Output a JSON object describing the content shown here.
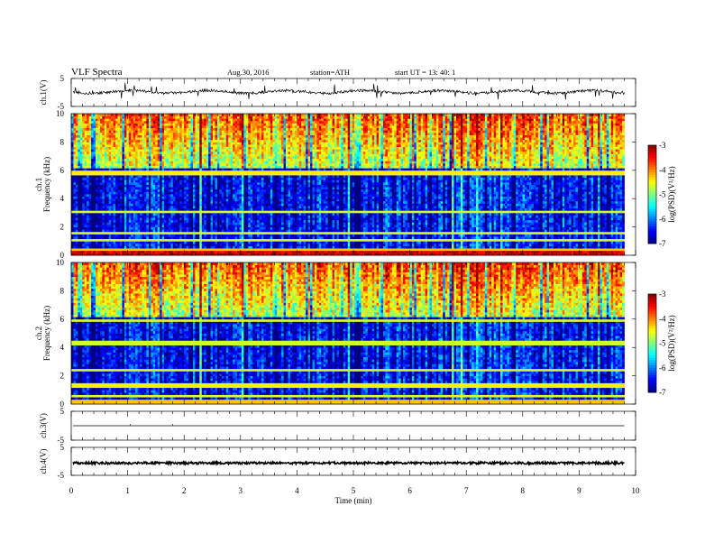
{
  "header": {
    "title": "VLF  Spectra",
    "date": "Aug.30, 2016",
    "station": "station=ATH",
    "start": "start  UT  =   13: 40: 1"
  },
  "chart_data": [
    {
      "type": "line",
      "name": "ch1-waveform",
      "ylabel": "ch.1(V)",
      "ylim": [
        -5,
        5
      ],
      "yticks": [
        "5",
        "-5"
      ],
      "xlim": [
        0,
        10
      ],
      "baseline": 0.2,
      "data_end_x": 9.8
    },
    {
      "type": "heatmap",
      "name": "ch1-spectrogram",
      "ylabel": "ch.1\nFrequency  (kHz)",
      "ylim": [
        0,
        10
      ],
      "yticks": [
        "0",
        "2",
        "4",
        "6",
        "8",
        "10"
      ],
      "xlim": [
        0,
        10
      ],
      "data_end_x": 9.8,
      "colorbar": {
        "label": "log(PSD)(V²/Hz)",
        "range": [
          -7,
          -3
        ],
        "ticks": [
          "-3",
          "-4",
          "-5",
          "-6",
          "-7"
        ]
      }
    },
    {
      "type": "heatmap",
      "name": "ch2-spectrogram",
      "ylabel": "ch.2\nFrequency  (kHz)",
      "ylim": [
        0,
        10
      ],
      "yticks": [
        "0",
        "2",
        "4",
        "6",
        "8",
        "10"
      ],
      "xlim": [
        0,
        10
      ],
      "data_end_x": 9.8,
      "colorbar": {
        "label": "log(PSD)(V²/Hz)",
        "range": [
          -7,
          -3
        ],
        "ticks": [
          "-3",
          "-4",
          "-5",
          "-6",
          "-7"
        ]
      }
    },
    {
      "type": "line",
      "name": "ch3-waveform",
      "ylabel": "ch.3(V)",
      "ylim": [
        -5,
        5
      ],
      "yticks": [
        "5",
        "-5"
      ],
      "xlim": [
        0,
        10
      ],
      "baseline": 0.0,
      "data_end_x": 9.8
    },
    {
      "type": "line",
      "name": "ch4-waveform",
      "ylabel": "ch.4(V)",
      "ylim": [
        -5,
        5
      ],
      "yticks": [
        "5",
        "-5"
      ],
      "xlim": [
        0,
        10
      ],
      "baseline": -0.6,
      "data_end_x": 9.8
    }
  ],
  "xaxis": {
    "label": "Time  (min)",
    "ticks": [
      "0",
      "1",
      "2",
      "3",
      "4",
      "5",
      "6",
      "7",
      "8",
      "9",
      "10"
    ]
  }
}
